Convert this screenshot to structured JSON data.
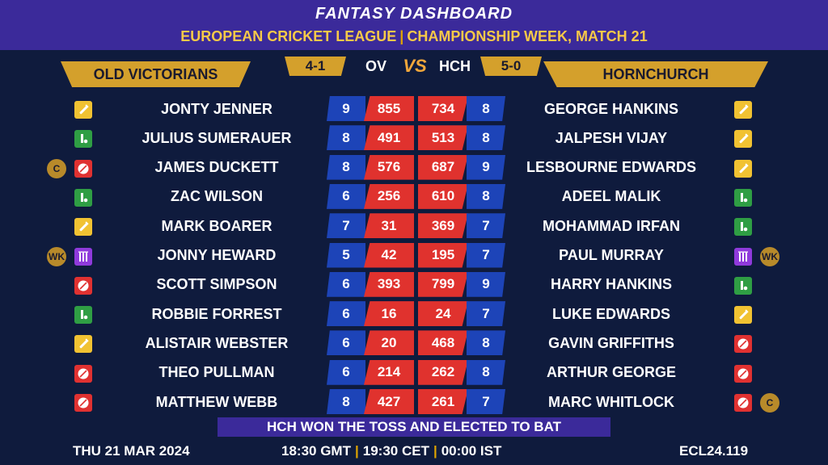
{
  "header": {
    "title": "FANTASY DASHBOARD",
    "subtitle_left": "EUROPEAN CRICKET LEAGUE",
    "subtitle_sep": "|",
    "subtitle_right": "CHAMPIONSHIP WEEK, MATCH 21"
  },
  "teams": {
    "left": {
      "name": "OLD VICTORIANS",
      "abbr": "OV",
      "score": "4-1"
    },
    "right": {
      "name": "HORNCHURCH",
      "abbr": "HCH",
      "score": "5-0"
    },
    "vs": "VS"
  },
  "colors": {
    "bat": "#f1c232",
    "bowl": "#e03131",
    "allrounder": "#2f9e44",
    "wicketkeeper": "#8f3adb",
    "accent": "#d4a02c"
  },
  "icons": {
    "bat": "bat-icon",
    "bowl": "ball-icon",
    "allrounder": "allrounder-icon",
    "wicketkeeper": "stumps-icon"
  },
  "players": [
    {
      "left": {
        "name": "JONTY JENNER",
        "role": "bat",
        "tag": "",
        "rating": "9",
        "points": "855"
      },
      "right": {
        "name": "GEORGE HANKINS",
        "role": "bat",
        "tag": "",
        "rating": "8",
        "points": "734"
      }
    },
    {
      "left": {
        "name": "JULIUS SUMERAUER",
        "role": "allrounder",
        "tag": "",
        "rating": "8",
        "points": "491"
      },
      "right": {
        "name": "JALPESH VIJAY",
        "role": "bat",
        "tag": "",
        "rating": "8",
        "points": "513"
      }
    },
    {
      "left": {
        "name": "JAMES DUCKETT",
        "role": "bowl",
        "tag": "C",
        "rating": "8",
        "points": "576"
      },
      "right": {
        "name": "LESBOURNE EDWARDS",
        "role": "bat",
        "tag": "",
        "rating": "9",
        "points": "687"
      }
    },
    {
      "left": {
        "name": "ZAC WILSON",
        "role": "allrounder",
        "tag": "",
        "rating": "6",
        "points": "256"
      },
      "right": {
        "name": "ADEEL MALIK",
        "role": "allrounder",
        "tag": "",
        "rating": "8",
        "points": "610"
      }
    },
    {
      "left": {
        "name": "MARK BOARER",
        "role": "bat",
        "tag": "",
        "rating": "7",
        "points": "31"
      },
      "right": {
        "name": "MOHAMMAD IRFAN",
        "role": "allrounder",
        "tag": "",
        "rating": "7",
        "points": "369"
      }
    },
    {
      "left": {
        "name": "JONNY HEWARD",
        "role": "wicketkeeper",
        "tag": "WK",
        "rating": "5",
        "points": "42"
      },
      "right": {
        "name": "PAUL MURRAY",
        "role": "wicketkeeper",
        "tag": "WK",
        "rating": "7",
        "points": "195"
      }
    },
    {
      "left": {
        "name": "SCOTT SIMPSON",
        "role": "bowl",
        "tag": "",
        "rating": "6",
        "points": "393"
      },
      "right": {
        "name": "HARRY HANKINS",
        "role": "allrounder",
        "tag": "",
        "rating": "9",
        "points": "799"
      }
    },
    {
      "left": {
        "name": "ROBBIE FORREST",
        "role": "allrounder",
        "tag": "",
        "rating": "6",
        "points": "16"
      },
      "right": {
        "name": "LUKE EDWARDS",
        "role": "bat",
        "tag": "",
        "rating": "7",
        "points": "24"
      }
    },
    {
      "left": {
        "name": "ALISTAIR WEBSTER",
        "role": "bat",
        "tag": "",
        "rating": "6",
        "points": "20"
      },
      "right": {
        "name": "GAVIN GRIFFITHS",
        "role": "bowl",
        "tag": "",
        "rating": "8",
        "points": "468"
      }
    },
    {
      "left": {
        "name": "THEO PULLMAN",
        "role": "bowl",
        "tag": "",
        "rating": "6",
        "points": "214"
      },
      "right": {
        "name": "ARTHUR GEORGE",
        "role": "bowl",
        "tag": "",
        "rating": "8",
        "points": "262"
      }
    },
    {
      "left": {
        "name": "MATTHEW WEBB",
        "role": "bowl",
        "tag": "",
        "rating": "8",
        "points": "427"
      },
      "right": {
        "name": "MARC WHITLOCK",
        "role": "bowl",
        "tag": "C",
        "rating": "7",
        "points": "261"
      }
    }
  ],
  "toss": "HCH WON THE TOSS AND ELECTED TO BAT",
  "footer": {
    "date": "THU 21 MAR 2024",
    "time_gmt": "18:30 GMT",
    "time_cet": "19:30 CET",
    "time_ist": "00:00 IST",
    "time_sep": "|",
    "code": "ECL24.119"
  }
}
